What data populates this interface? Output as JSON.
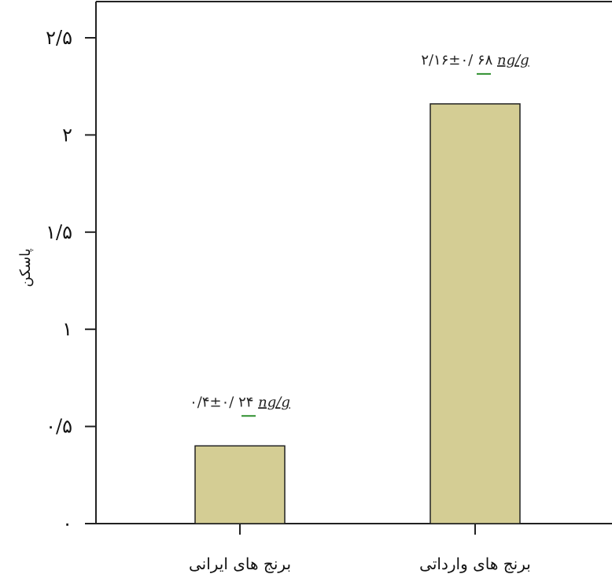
{
  "chart_data": {
    "type": "bar",
    "categories": [
      "برنج های ایرانی",
      "برنج های وارداتی"
    ],
    "values": [
      0.4,
      2.16
    ],
    "annotations": [
      {
        "value": "۰/۴±۰/ ۲۴",
        "unit": "ng/g"
      },
      {
        "value": "۲/۱۶±۰/ ۶۸",
        "unit": "ng/g"
      }
    ],
    "ylabel": "پاسکن",
    "ylim": [
      0,
      2.5
    ],
    "yticks": [
      0,
      0.5,
      1,
      1.5,
      2,
      2.5
    ],
    "ytick_labels": [
      "۰",
      "۰/۵",
      "۱",
      "۱/۵",
      "۲",
      "۲/۵"
    ],
    "bar_color": "#d4cd94",
    "bar_edge_color": "#222222",
    "annotation_underline_color": "#2f8f2f",
    "grid": false,
    "legend": "none"
  }
}
